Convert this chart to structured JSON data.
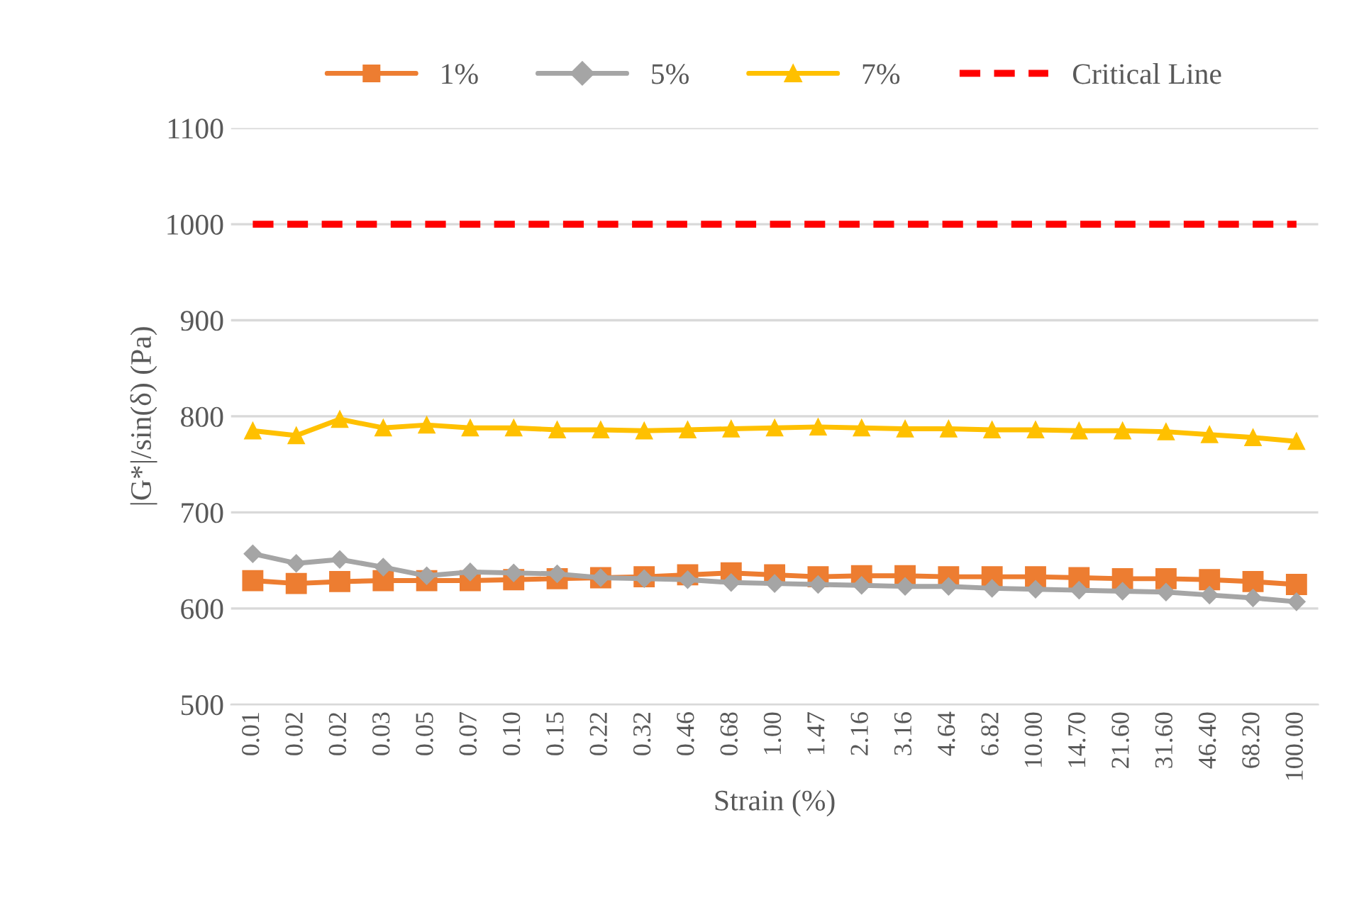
{
  "chart_data": {
    "type": "line",
    "xlabel": "Strain (%)",
    "ylabel": "|G*|/sin(δ) (Pa)",
    "categories": [
      "0.01",
      "0.02",
      "0.02",
      "0.03",
      "0.05",
      "0.07",
      "0.10",
      "0.15",
      "0.22",
      "0.32",
      "0.46",
      "0.68",
      "1.00",
      "1.47",
      "2.16",
      "3.16",
      "4.64",
      "6.82",
      "10.00",
      "14.70",
      "21.60",
      "31.60",
      "46.40",
      "68.20",
      "100.00"
    ],
    "series": [
      {
        "name": "1%",
        "color": "#ed7d31",
        "marker": "square",
        "values": [
          629,
          626,
          628,
          629,
          629,
          629,
          630,
          631,
          632,
          633,
          635,
          637,
          635,
          633,
          634,
          634,
          633,
          633,
          633,
          632,
          631,
          631,
          630,
          628,
          625
        ]
      },
      {
        "name": "5%",
        "color": "#a5a5a5",
        "marker": "diamond",
        "values": [
          657,
          647,
          651,
          643,
          634,
          638,
          637,
          636,
          632,
          631,
          630,
          627,
          626,
          625,
          624,
          623,
          623,
          621,
          620,
          619,
          618,
          617,
          614,
          611,
          607
        ]
      },
      {
        "name": "7%",
        "color": "#ffc000",
        "marker": "triangle",
        "values": [
          785,
          780,
          797,
          788,
          791,
          788,
          788,
          786,
          786,
          785,
          786,
          787,
          788,
          789,
          788,
          787,
          787,
          786,
          786,
          785,
          785,
          784,
          781,
          778,
          774
        ]
      },
      {
        "name": "Critical Line",
        "color": "#ff0000",
        "marker": "none",
        "line_style": "dashed",
        "values": [
          1000,
          1000,
          1000,
          1000,
          1000,
          1000,
          1000,
          1000,
          1000,
          1000,
          1000,
          1000,
          1000,
          1000,
          1000,
          1000,
          1000,
          1000,
          1000,
          1000,
          1000,
          1000,
          1000,
          1000,
          1000
        ]
      }
    ],
    "ylim": [
      500,
      1100
    ],
    "yticks": [
      500,
      600,
      700,
      800,
      900,
      1000,
      1100
    ],
    "grid": "y",
    "legend": "top"
  }
}
